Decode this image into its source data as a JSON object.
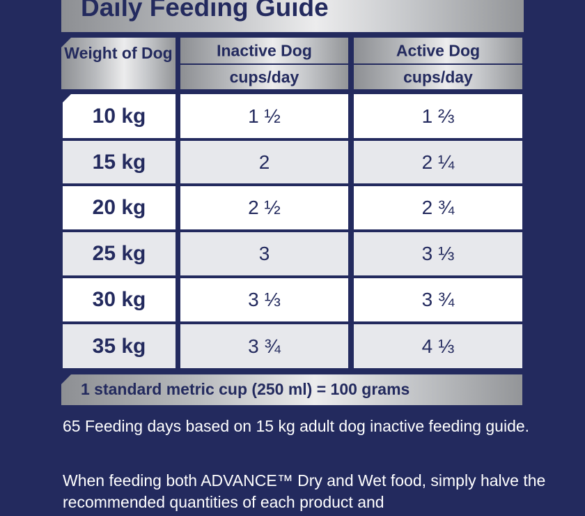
{
  "title": "Daily Feeding Guide",
  "table": {
    "weight_header": "Weight of Dog",
    "columns": [
      {
        "label": "Inactive Dog",
        "unit": "cups/day"
      },
      {
        "label": "Active Dog",
        "unit": "cups/day"
      }
    ],
    "rows": [
      {
        "weight": "10 kg",
        "inactive": "1 ½",
        "active": "1 ⅔"
      },
      {
        "weight": "15 kg",
        "inactive": "2",
        "active": "2 ¼"
      },
      {
        "weight": "20 kg",
        "inactive": "2 ½",
        "active": "2 ¾"
      },
      {
        "weight": "25 kg",
        "inactive": "3",
        "active": "3 ⅓"
      },
      {
        "weight": "30 kg",
        "inactive": "3 ⅓",
        "active": "3 ¾"
      },
      {
        "weight": "35 kg",
        "inactive": "3 ¾",
        "active": "4 ⅓"
      }
    ]
  },
  "footnote": "1 standard metric cup (250 ml) = 100 grams",
  "paragraphs": [
    "65 Feeding days based on 15 kg adult dog inactive feeding guide.",
    "When feeding both ADVANCE™ Dry and Wet food, simply halve the recommended quantities of each product and"
  ],
  "colors": {
    "background": "#232a5e",
    "text_dark": "#232a5e",
    "row_white": "#ffffff",
    "row_grey": "#e7e8ec"
  }
}
